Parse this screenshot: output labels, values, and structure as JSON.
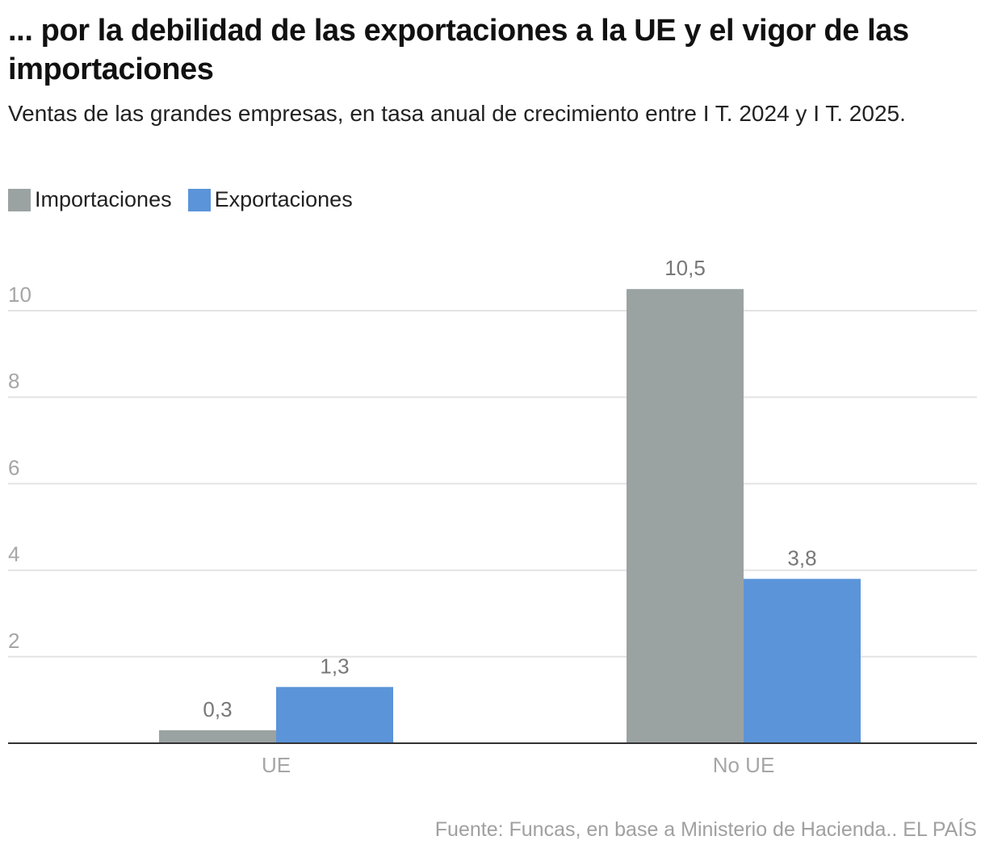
{
  "title": "... por la debilidad de las exportaciones a la UE y el vigor de las importaciones",
  "subtitle": "Ventas de las grandes empresas, en tasa anual de crecimiento entre I T. 2024 y I T. 2025.",
  "legend": [
    {
      "label": "Importaciones",
      "color": "#9ba3a2"
    },
    {
      "label": "Exportaciones",
      "color": "#5b94d9"
    }
  ],
  "source": "Fuente: Funcas, en base a Ministerio de Hacienda.. EL PAÍS",
  "chart_data": {
    "type": "bar",
    "title": "... por la debilidad de las exportaciones a la UE y el vigor de las importaciones",
    "subtitle": "Ventas de las grandes empresas, en tasa anual de crecimiento entre I T. 2024 y I T. 2025.",
    "xlabel": "",
    "ylabel": "",
    "categories": [
      "UE",
      "No UE"
    ],
    "series": [
      {
        "name": "Importaciones",
        "color": "#9ba3a2",
        "values": [
          0.3,
          10.5
        ],
        "labels": [
          "0,3",
          "10,5"
        ]
      },
      {
        "name": "Exportaciones",
        "color": "#5b94d9",
        "values": [
          1.3,
          3.8
        ],
        "labels": [
          "1,3",
          "3,8"
        ]
      }
    ],
    "ylim": [
      0,
      10.5
    ],
    "yticks": [
      2,
      4,
      6,
      8,
      10
    ],
    "ytick_labels": [
      "2",
      "4",
      "6",
      "8",
      "10"
    ],
    "grid": true,
    "legend_position": "top-left"
  }
}
